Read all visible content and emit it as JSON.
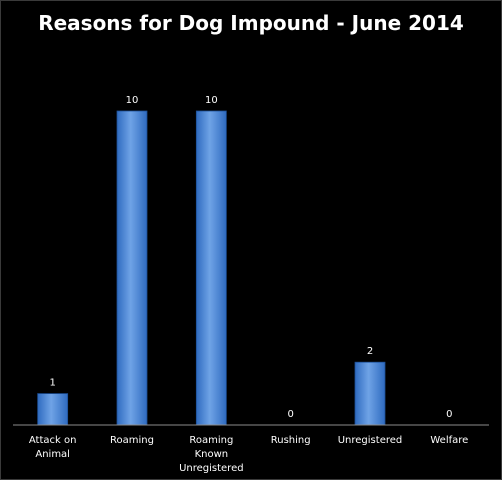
{
  "chart_data": {
    "type": "bar",
    "title": "Reasons for Dog Impound - June 2014",
    "xlabel": "",
    "ylabel": "",
    "categories": [
      "Attack on Animal",
      "Roaming",
      "Roaming Known Unregistered",
      "Rushing",
      "Unregistered",
      "Welfare"
    ],
    "category_lines": [
      [
        "Attack on",
        "Animal"
      ],
      [
        "Roaming"
      ],
      [
        "Roaming",
        "Known",
        "Unregistered"
      ],
      [
        "Rushing"
      ],
      [
        "Unregistered"
      ],
      [
        "Welfare"
      ]
    ],
    "values": [
      1,
      10,
      10,
      0,
      2,
      0
    ],
    "ylim": [
      0,
      10
    ],
    "grid": false,
    "legend": "none",
    "show_data_labels": true,
    "colors": {
      "background": "#000000",
      "bar_top": "#6fa3e6",
      "bar_bottom": "#2f6bc0",
      "bar_stroke": "#1d4f96",
      "axis": "#8c8c8c",
      "text": "#ffffff"
    }
  }
}
